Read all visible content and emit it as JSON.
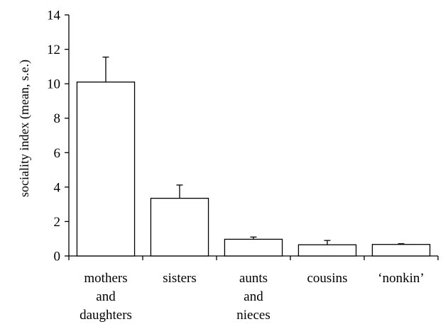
{
  "chart_data": {
    "type": "bar",
    "categories": [
      [
        "mothers",
        "and",
        "daughters"
      ],
      [
        "sisters"
      ],
      [
        "aunts",
        "and",
        "nieces"
      ],
      [
        "cousins"
      ],
      [
        "‘nonkin’"
      ]
    ],
    "values": [
      10.1,
      3.35,
      0.97,
      0.65,
      0.67
    ],
    "errors": [
      1.45,
      0.77,
      0.13,
      0.25,
      0.04
    ],
    "ylabel": "sociality index (mean, s.e.)",
    "ylim": [
      0,
      14
    ],
    "yticks": [
      "0",
      "2",
      "4",
      "6",
      "8",
      "10",
      "12",
      "14"
    ],
    "grid": false,
    "colors": {
      "bar_fill": "#ffffff",
      "bar_stroke": "#000000",
      "axis": "#000000"
    }
  }
}
